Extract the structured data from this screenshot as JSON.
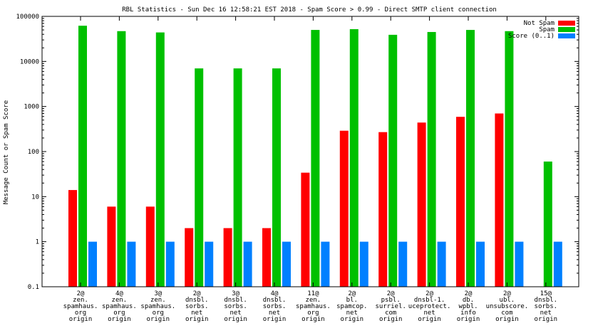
{
  "chart_data": {
    "type": "bar",
    "title": "RBL Statistics - Sun Dec 16 12:58:21 EST 2018 - Spam Score > 0.99 - Direct SMTP client connection",
    "xlabel": "",
    "ylabel": "Message Count or Spam Score",
    "y_scale": "log",
    "ylim": [
      0.1,
      100000
    ],
    "y_ticks": [
      {
        "value": 0.1,
        "label": "0.1"
      },
      {
        "value": 1,
        "label": "1"
      },
      {
        "value": 10,
        "label": "10"
      },
      {
        "value": 100,
        "label": "100"
      },
      {
        "value": 1000,
        "label": "1000"
      },
      {
        "value": 10000,
        "label": "10000"
      },
      {
        "value": 100000,
        "label": "100000"
      }
    ],
    "grid": false,
    "legend_position": "top-right",
    "categories": [
      [
        "2@",
        "zen.",
        "spamhaus.",
        "org",
        "origin"
      ],
      [
        "4@",
        "zen.",
        "spamhaus.",
        "org",
        "origin"
      ],
      [
        "3@",
        "zen.",
        "spamhaus.",
        "org",
        "origin"
      ],
      [
        "2@",
        "dnsbl.",
        "sorbs.",
        "net",
        "origin"
      ],
      [
        "3@",
        "dnsbl.",
        "sorbs.",
        "net",
        "origin"
      ],
      [
        "4@",
        "dnsbl.",
        "sorbs.",
        "net",
        "origin"
      ],
      [
        "11@",
        "zen.",
        "spamhaus.",
        "org",
        "origin"
      ],
      [
        "2@",
        "bl.",
        "spamcop.",
        "net",
        "origin"
      ],
      [
        "2@",
        "psbl.",
        "surriel.",
        "com",
        "origin"
      ],
      [
        "2@",
        "dnsbl-1.",
        "uceprotect.",
        "net",
        "origin"
      ],
      [
        "2@",
        "db.",
        "wpbl.",
        "info",
        "origin"
      ],
      [
        "2@",
        "ubl.",
        "unsubscore.",
        "com",
        "origin"
      ],
      [
        "15@",
        "dnsbl.",
        "sorbs.",
        "net",
        "origin"
      ]
    ],
    "series": [
      {
        "name": "Not Spam",
        "color": "#ff0000",
        "values": [
          14,
          6,
          6,
          2,
          2,
          2,
          34,
          290,
          270,
          440,
          590,
          700,
          null
        ]
      },
      {
        "name": "Spam",
        "color": "#00c000",
        "values": [
          62000,
          47000,
          44000,
          7000,
          7000,
          7000,
          50000,
          52000,
          39000,
          45000,
          50000,
          47000,
          60
        ]
      },
      {
        "name": "Score (0..1)",
        "color": "#0080ff",
        "values": [
          1,
          1,
          1,
          1,
          1,
          1,
          1,
          1,
          1,
          1,
          1,
          1,
          1
        ]
      }
    ]
  }
}
